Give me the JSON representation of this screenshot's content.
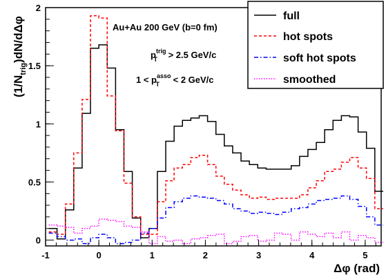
{
  "chart_data": {
    "type": "line",
    "style": "step-histogram",
    "xlim": [
      -1.0,
      5.3
    ],
    "ylim": [
      -0.05,
      2.0
    ],
    "xticks": [
      -1,
      0,
      1,
      2,
      3,
      4,
      5
    ],
    "yticks": [
      0,
      0.5,
      1,
      1.5,
      2
    ],
    "x_tick_labels": [
      "-1",
      "0",
      "1",
      "2",
      "3",
      "4",
      "5"
    ],
    "y_tick_labels": [
      "0",
      "0.5",
      "1",
      "1.5",
      "2"
    ],
    "xlabel": "Δφ (rad)",
    "ylabel": {
      "prefix": "(1/N",
      "sub": "trig",
      "suffix": ")dN/dΔφ"
    },
    "annotations": {
      "system": "Au+Au 200 GeV (b=0 fm)",
      "trig": {
        "p": "p",
        "sup": "trig",
        "sub": "T",
        "rest": " > 2.5 GeV/c"
      },
      "asso": {
        "pre": "1 < p",
        "sup": "asso",
        "sub": "T",
        "rest": " < 2 GeV/c"
      }
    },
    "legend_position": "top-right",
    "bin_edges": [
      -0.94,
      -0.785,
      -0.628,
      -0.471,
      -0.314,
      -0.157,
      0.0,
      0.157,
      0.314,
      0.471,
      0.628,
      0.785,
      0.942,
      1.099,
      1.256,
      1.413,
      1.57,
      1.727,
      1.884,
      2.041,
      2.198,
      2.355,
      2.512,
      2.669,
      2.826,
      2.983,
      3.14,
      3.297,
      3.454,
      3.611,
      3.768,
      3.925,
      4.082,
      4.239,
      4.396,
      4.553,
      4.71,
      4.867,
      5.024,
      5.181,
      5.338
    ],
    "series": [
      {
        "name": "full",
        "color": "#000000",
        "dash": "solid",
        "values": [
          0.1,
          0.01,
          0.26,
          0.62,
          1.09,
          1.65,
          1.68,
          1.48,
          0.95,
          0.59,
          0.19,
          0.02,
          0.1,
          0.59,
          0.85,
          0.98,
          1.03,
          1.05,
          1.07,
          1.02,
          0.91,
          0.81,
          0.75,
          0.68,
          0.65,
          0.62,
          0.61,
          0.61,
          0.61,
          0.64,
          0.72,
          0.78,
          0.84,
          0.95,
          1.03,
          1.07,
          1.06,
          0.93,
          0.79,
          0.42
        ]
      },
      {
        "name": "hot spots",
        "color": "#ff0000",
        "dash": "dashed",
        "values": [
          0.07,
          0.05,
          0.31,
          0.75,
          1.21,
          1.93,
          1.91,
          1.24,
          0.94,
          0.49,
          0.2,
          0.05,
          0.05,
          0.33,
          0.51,
          0.62,
          0.65,
          0.71,
          0.73,
          0.65,
          0.55,
          0.48,
          0.43,
          0.39,
          0.36,
          0.37,
          0.35,
          0.36,
          0.36,
          0.36,
          0.39,
          0.45,
          0.51,
          0.59,
          0.61,
          0.67,
          0.71,
          0.62,
          0.53,
          0.27
        ]
      },
      {
        "name": "soft hot spots",
        "color": "#0000ff",
        "dash": "dashdot",
        "values": [
          0.06,
          0.03,
          0.0,
          0.01,
          -0.03,
          0.02,
          0.05,
          0.02,
          -0.03,
          -0.02,
          0.0,
          0.06,
          0.1,
          0.19,
          0.28,
          0.33,
          0.36,
          0.38,
          0.37,
          0.36,
          0.34,
          0.31,
          0.27,
          0.25,
          0.23,
          0.24,
          0.23,
          0.22,
          0.24,
          0.27,
          0.28,
          0.31,
          0.34,
          0.35,
          0.36,
          0.38,
          0.35,
          0.29,
          0.2,
          0.13
        ]
      },
      {
        "name": "smoothed",
        "color": "#ff00ff",
        "dash": "dotted",
        "values": [
          0.13,
          0.12,
          0.11,
          0.06,
          0.1,
          0.12,
          0.18,
          0.17,
          0.16,
          0.12,
          0.11,
          0.07,
          -0.03,
          0.03,
          -0.01,
          0.0,
          -0.03,
          0.01,
          0.02,
          0.04,
          0.05,
          -0.03,
          -0.01,
          0.03,
          0.04,
          -0.01,
          0.0,
          0.06,
          0.05,
          0.0,
          0.07,
          0.05,
          0.03,
          0.06,
          0.02,
          0.07,
          0.0,
          0.04,
          0.02,
          -0.02
        ]
      }
    ]
  }
}
